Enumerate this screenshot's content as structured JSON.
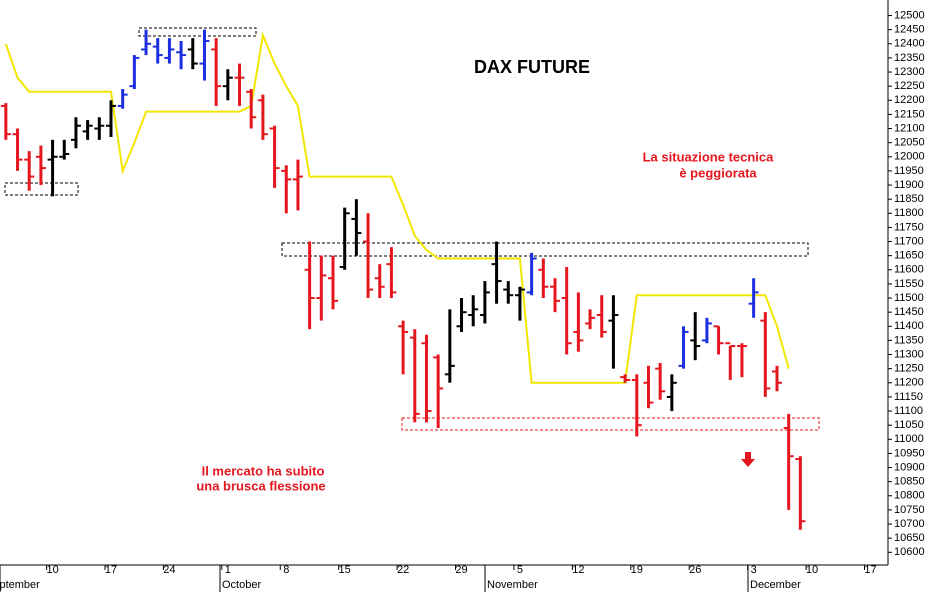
{
  "chart_data": {
    "type": "ohlc",
    "title": "DAX FUTURE",
    "annotations": [
      "La situazione tecnica",
      "è peggiorata",
      "Il mercato ha subito",
      "una brusca flessione"
    ],
    "annotation_color": "#e4161e",
    "month_labels": [
      "September",
      "October",
      "November",
      "December"
    ],
    "categories": [
      null,
      null,
      null,
      null,
      "10",
      null,
      null,
      null,
      null,
      "17",
      null,
      null,
      null,
      null,
      "24",
      null,
      null,
      null,
      null,
      "1",
      null,
      null,
      null,
      null,
      "8",
      null,
      null,
      null,
      null,
      "15",
      null,
      null,
      null,
      null,
      "22",
      null,
      null,
      null,
      null,
      "29",
      null,
      null,
      null,
      null,
      "5",
      null,
      null,
      null,
      null,
      "12",
      null,
      null,
      null,
      null,
      "19",
      null,
      null,
      null,
      null,
      "26",
      null,
      null,
      null,
      null,
      "3",
      null,
      null,
      null,
      null,
      "10",
      null,
      null,
      null,
      null,
      "17",
      null
    ],
    "ohlc": {
      "open": [
        12180,
        12080,
        11990,
        12000,
        11990,
        12000,
        12060,
        12090,
        12100,
        12110,
        12180,
        12250,
        12380,
        12390,
        12350,
        12370,
        12380,
        12330,
        12380,
        12250,
        12280,
        12230,
        12200,
        12100,
        11950,
        11920,
        11600,
        11500,
        11570,
        11610,
        11780,
        11700,
        11570,
        11620,
        11400,
        11360,
        11340,
        11290,
        11230,
        11400,
        11440,
        11440,
        11620,
        11530,
        11510,
        11520,
        11600,
        11540,
        11500,
        11380,
        11410,
        11440,
        11420,
        11220,
        11210,
        11200,
        11250,
        11150,
        11260,
        11350,
        11350,
        11400,
        11340,
        11330,
        11480,
        11420,
        11240,
        11040,
        10930,
        null,
        null,
        null,
        null,
        null,
        null,
        null
      ],
      "high": [
        12190,
        12100,
        12020,
        12040,
        12060,
        12060,
        12140,
        12130,
        12140,
        12200,
        12240,
        12360,
        12450,
        12420,
        12420,
        12410,
        12420,
        12450,
        12420,
        12310,
        12330,
        12240,
        12220,
        12110,
        11970,
        11990,
        11700,
        11650,
        11650,
        11820,
        11850,
        11800,
        11620,
        11680,
        11420,
        11390,
        11370,
        11300,
        11460,
        11500,
        11510,
        11560,
        11700,
        11560,
        11540,
        11660,
        11640,
        11570,
        11610,
        11520,
        11460,
        11510,
        11510,
        11230,
        11230,
        11260,
        11270,
        11230,
        11400,
        11450,
        11430,
        11400,
        11330,
        11340,
        11570,
        11450,
        11260,
        11090,
        10940,
        null,
        null,
        null,
        null,
        null,
        null,
        null
      ],
      "low": [
        12060,
        11950,
        11880,
        11900,
        11860,
        11990,
        12030,
        12060,
        12060,
        12070,
        12170,
        12240,
        12360,
        12330,
        12330,
        12310,
        12310,
        12270,
        12180,
        12200,
        12180,
        12100,
        12060,
        11890,
        11800,
        11810,
        11390,
        11420,
        11460,
        11600,
        11650,
        11500,
        11500,
        11500,
        11230,
        11060,
        11060,
        11040,
        11200,
        11380,
        11400,
        11410,
        11480,
        11480,
        11420,
        11510,
        11500,
        11450,
        11300,
        11310,
        11390,
        11360,
        11250,
        11200,
        11010,
        11110,
        11140,
        11100,
        11250,
        11280,
        11340,
        11300,
        11210,
        11220,
        11430,
        11150,
        11170,
        10750,
        10680,
        null,
        null,
        null,
        null,
        null,
        null,
        null
      ],
      "close": [
        12080,
        11990,
        11930,
        11960,
        12000,
        12010,
        12110,
        12110,
        12110,
        12180,
        12220,
        12350,
        12400,
        12360,
        12380,
        12360,
        12330,
        12410,
        12250,
        12280,
        12280,
        12140,
        12080,
        11960,
        11920,
        11930,
        11500,
        11580,
        11490,
        11800,
        11730,
        11530,
        11540,
        11520,
        11380,
        11090,
        11100,
        11180,
        11260,
        11450,
        11460,
        11520,
        11560,
        11510,
        11530,
        11640,
        11540,
        11490,
        11340,
        11350,
        11430,
        11380,
        11440,
        11210,
        11050,
        11130,
        11170,
        11200,
        11380,
        11330,
        11410,
        11340,
        11330,
        11330,
        11520,
        11180,
        11200,
        10940,
        10710,
        null,
        null,
        null,
        null,
        null,
        null,
        null
      ],
      "colors": [
        "#e4161e",
        "#e4161e",
        "#e4161e",
        "#e4161e",
        "#000000",
        "#000000",
        "#000000",
        "#000000",
        "#000000",
        "#000000",
        "#1b2fe0",
        "#1b2fe0",
        "#1b2fe0",
        "#1b2fe0",
        "#1b2fe0",
        "#1b2fe0",
        "#000000",
        "#1b2fe0",
        "#e4161e",
        "#000000",
        "#e4161e",
        "#e4161e",
        "#e4161e",
        "#e4161e",
        "#e4161e",
        "#e4161e",
        "#e4161e",
        "#e4161e",
        "#e4161e",
        "#000000",
        "#000000",
        "#e4161e",
        "#e4161e",
        "#e4161e",
        "#e4161e",
        "#e4161e",
        "#e4161e",
        "#e4161e",
        "#000000",
        "#000000",
        "#000000",
        "#000000",
        "#000000",
        "#000000",
        "#000000",
        "#1b2fe0",
        "#e4161e",
        "#e4161e",
        "#e4161e",
        "#e4161e",
        "#e4161e",
        "#e4161e",
        "#000000",
        "#e4161e",
        "#e4161e",
        "#e4161e",
        "#e4161e",
        "#000000",
        "#1b2fe0",
        "#000000",
        "#1b2fe0",
        "#e4161e",
        "#e4161e",
        "#e4161e",
        "#1b2fe0",
        "#e4161e",
        "#e4161e",
        "#e4161e",
        "#e4161e",
        null,
        null,
        null,
        null,
        null,
        null,
        null
      ]
    },
    "line": {
      "color": "#f2e600",
      "values": [
        12400,
        12280,
        12230,
        12230,
        12230,
        12230,
        12230,
        12230,
        12230,
        12230,
        11950,
        12050,
        12160,
        12160,
        12160,
        12160,
        12160,
        12160,
        12160,
        12160,
        12160,
        12180,
        12430,
        12330,
        12250,
        12180,
        11930,
        11930,
        11930,
        11930,
        11930,
        11930,
        11930,
        11930,
        11830,
        11720,
        11670,
        11640,
        11640,
        11640,
        11640,
        11640,
        11640,
        11640,
        11640,
        11200,
        11200,
        11200,
        11200,
        11200,
        11200,
        11200,
        11200,
        11200,
        11510,
        11510,
        11510,
        11510,
        11510,
        11510,
        11510,
        11510,
        11510,
        11510,
        11510,
        11510,
        11400,
        11250,
        null,
        null,
        null,
        null,
        null,
        null,
        null,
        null
      ]
    },
    "ylim": [
      10555,
      12555
    ],
    "yticks": [
      12500,
      12450,
      12400,
      12350,
      12300,
      12250,
      12200,
      12150,
      12100,
      12050,
      12000,
      11950,
      11900,
      11850,
      11800,
      11750,
      11700,
      11650,
      11600,
      11550,
      11500,
      11450,
      11400,
      11350,
      11300,
      11250,
      11200,
      11150,
      11100,
      11050,
      11000,
      10950,
      10900,
      10850,
      10800,
      10750,
      10700,
      10650,
      10600
    ],
    "grid": false
  }
}
